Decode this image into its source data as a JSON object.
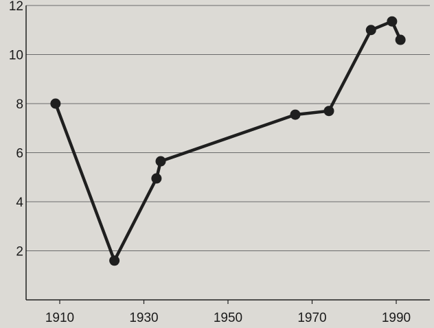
{
  "chart_data": {
    "type": "line",
    "title": "",
    "xlabel": "",
    "ylabel": "",
    "xlim": [
      1902,
      1998
    ],
    "ylim": [
      0,
      12
    ],
    "grid": "horizontal",
    "x_ticks": [
      1910,
      1930,
      1950,
      1970,
      1990
    ],
    "x_tick_labels": [
      "1910",
      "1930",
      "1950",
      "1970",
      "1990"
    ],
    "y_ticks": [
      2,
      4,
      6,
      8,
      10,
      12
    ],
    "y_tick_labels": [
      "2",
      "4",
      "6",
      "8",
      "10",
      "12"
    ],
    "series": [
      {
        "points": [
          {
            "x": 1909,
            "y": 8.0
          },
          {
            "x": 1923,
            "y": 1.6
          },
          {
            "x": 1933,
            "y": 4.95
          },
          {
            "x": 1934,
            "y": 5.65
          },
          {
            "x": 1966,
            "y": 7.55
          },
          {
            "x": 1974,
            "y": 7.7
          },
          {
            "x": 1984,
            "y": 11.0
          },
          {
            "x": 1989,
            "y": 11.35
          },
          {
            "x": 1991,
            "y": 10.6
          }
        ]
      }
    ],
    "colors": {
      "line": "#1f1f1f",
      "marker": "#1f1f1f",
      "grid": "#6a6a6a",
      "axis": "#1f1f1f",
      "background": "#dcdad5"
    }
  }
}
